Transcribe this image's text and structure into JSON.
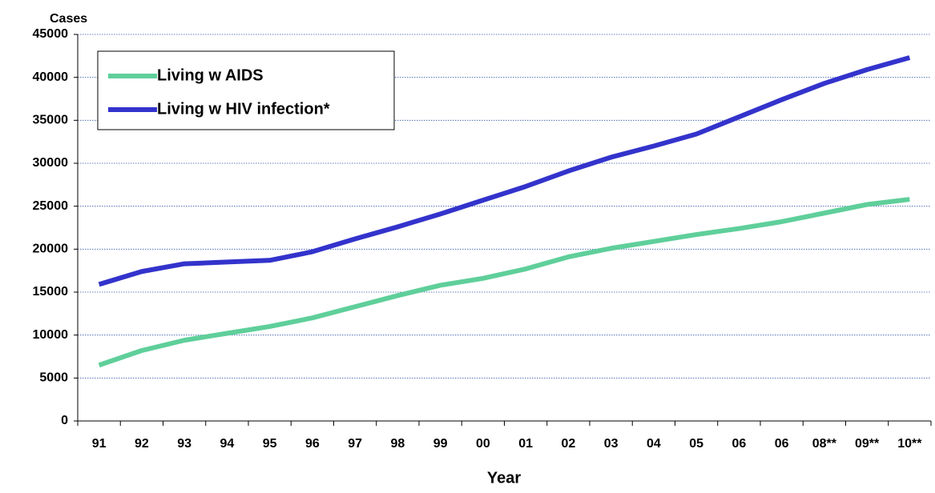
{
  "chart_data": {
    "type": "line",
    "ylabel": "Cases",
    "xlabel": "Year",
    "categories": [
      "91",
      "92",
      "93",
      "94",
      "95",
      "96",
      "97",
      "98",
      "99",
      "00",
      "01",
      "02",
      "03",
      "04",
      "05",
      "06",
      "06",
      "08**",
      "09**",
      "10**"
    ],
    "series": [
      {
        "name": "Living w AIDS",
        "color": "#5fcf9a",
        "values": [
          6500,
          8200,
          9400,
          10200,
          11000,
          12000,
          13300,
          14600,
          15800,
          16600,
          17700,
          19100,
          20100,
          20900,
          21700,
          22400,
          23200,
          24200,
          25200,
          25800
        ]
      },
      {
        "name": "Living w HIV infection*",
        "color": "#3333cc",
        "values": [
          15900,
          17400,
          18300,
          18500,
          18700,
          19700,
          21200,
          22600,
          24100,
          25700,
          27300,
          29100,
          30700,
          32000,
          33400,
          35400,
          37400,
          39300,
          40900,
          42300
        ]
      }
    ],
    "ylim": [
      0,
      45000
    ],
    "yticks": [
      0,
      5000,
      10000,
      15000,
      20000,
      25000,
      30000,
      35000,
      40000,
      45000
    ],
    "grid": true
  }
}
